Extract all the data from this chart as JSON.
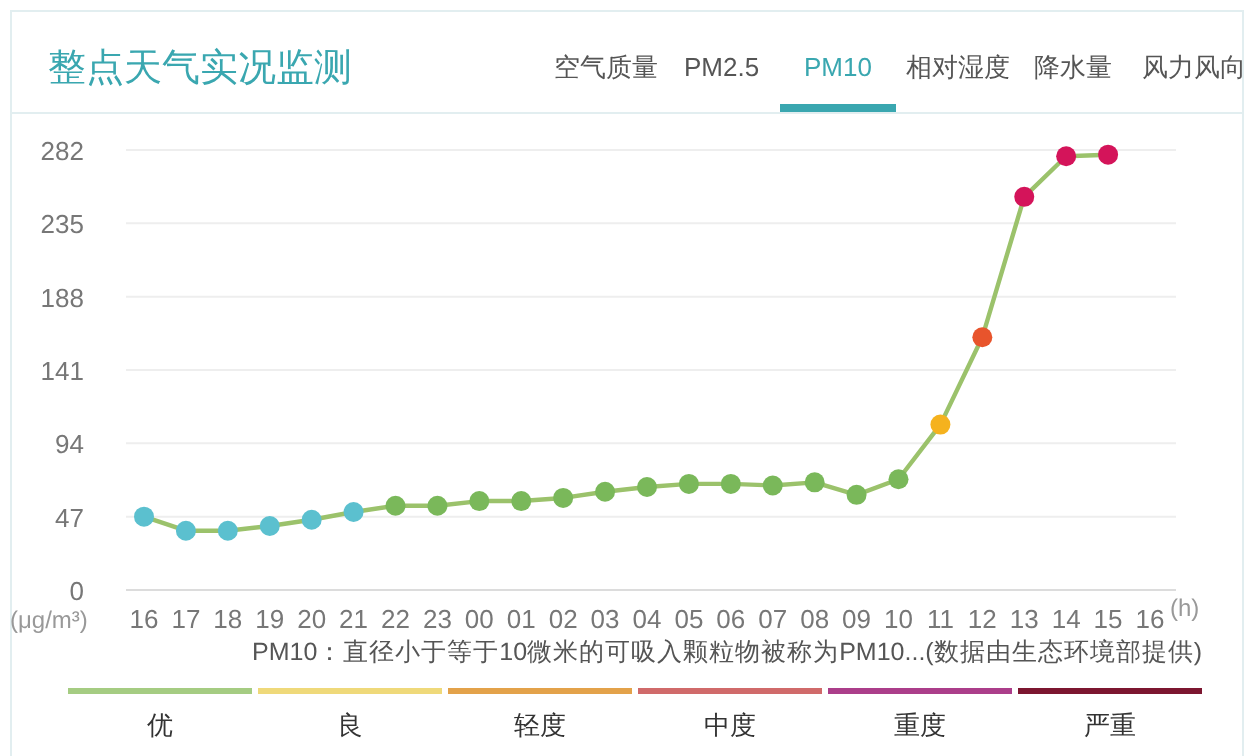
{
  "chart_data": {
    "type": "line",
    "title": "整点天气实况监测",
    "categories": [
      "16",
      "17",
      "18",
      "19",
      "20",
      "21",
      "22",
      "23",
      "00",
      "01",
      "02",
      "03",
      "04",
      "05",
      "06",
      "07",
      "08",
      "09",
      "10",
      "11",
      "12",
      "13",
      "14",
      "15",
      "16"
    ],
    "series": [
      {
        "color": "#9bc26b",
        "values": [
          47,
          38,
          38,
          41,
          45,
          50,
          54,
          54,
          57,
          57,
          59,
          63,
          66,
          68,
          68,
          67,
          69,
          61,
          71,
          106,
          162,
          252,
          278,
          279,
          null
        ],
        "colors": [
          "#5bc0cf",
          "#5bc0cf",
          "#5bc0cf",
          "#5bc0cf",
          "#5bc0cf",
          "#5bc0cf",
          "#7ab85a",
          "#7ab85a",
          "#7ab85a",
          "#7ab85a",
          "#7ab85a",
          "#7ab85a",
          "#7ab85a",
          "#7ab85a",
          "#7ab85a",
          "#7ab85a",
          "#7ab85a",
          "#7ab85a",
          "#7ab85a",
          "#f5b21e",
          "#e8542c",
          "#d4145a",
          "#d4145a",
          "#d4145a",
          null
        ]
      }
    ],
    "ylim": [
      0,
      282
    ],
    "yticks": [
      0,
      47,
      94,
      141,
      188,
      235,
      282
    ],
    "grid": "y",
    "marker": "circle",
    "annotations": [
      "(μg/m³)",
      "(h)",
      "PM10：直径小于等于10微米的可吸入颗粒物被称为PM10...(数据由生态环境部提供)",
      "空气质量",
      "PM2.5",
      "PM10",
      "相对湿度",
      "降水量",
      "风力风向",
      "优",
      "良",
      "轻度",
      "中度",
      "重度",
      "严重"
    ]
  }
}
